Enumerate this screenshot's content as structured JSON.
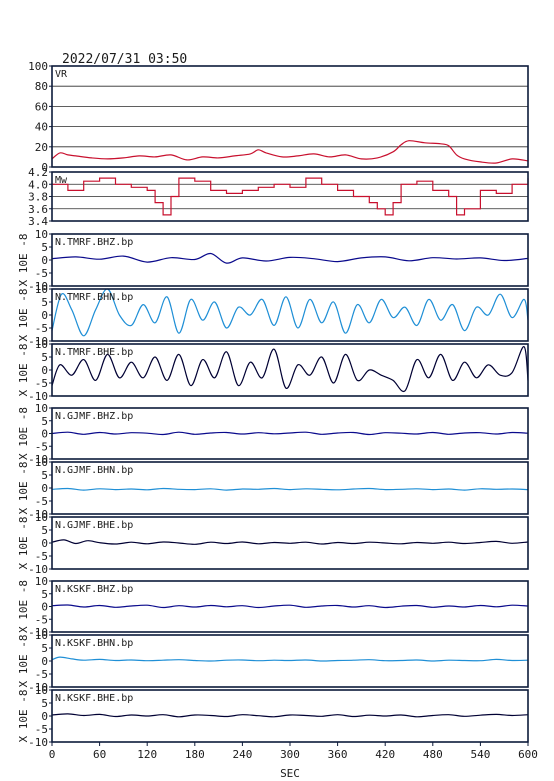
{
  "timestamp": "2022/07/31  03:50",
  "colors": {
    "frame": "#0c1a3a",
    "vr": "#c8102e",
    "mw": "#c8102e",
    "dark_blue": "#0a0a8c",
    "light_blue": "#1f8fd6",
    "black_trace": "#000033"
  },
  "x_axis": {
    "label": "SEC",
    "ticks": [
      0,
      60,
      120,
      180,
      240,
      300,
      360,
      420,
      480,
      540,
      600
    ],
    "range": [
      0,
      600
    ]
  },
  "wave_ylabel": "X 10E -8",
  "chart_data": [
    {
      "id": "vr",
      "type": "line",
      "label": "VR",
      "ylim": [
        0,
        100
      ],
      "yticks": [
        0,
        20,
        40,
        60,
        80,
        100
      ],
      "ytick_labels": [
        "0",
        "20",
        "40",
        "60",
        "80",
        "100"
      ],
      "grid": true,
      "color": "#c8102e",
      "x": [
        0,
        10,
        20,
        30,
        50,
        70,
        90,
        110,
        130,
        150,
        170,
        190,
        210,
        230,
        250,
        260,
        270,
        290,
        310,
        330,
        350,
        370,
        390,
        410,
        430,
        440,
        450,
        470,
        490,
        500,
        510,
        520,
        540,
        560,
        580,
        600
      ],
      "y": [
        8,
        14,
        12,
        11,
        9,
        8,
        9,
        11,
        10,
        12,
        7,
        10,
        9,
        11,
        13,
        17,
        14,
        10,
        11,
        13,
        10,
        12,
        8,
        9,
        15,
        22,
        26,
        24,
        23,
        21,
        12,
        8,
        5,
        4,
        8,
        6
      ]
    },
    {
      "id": "mw",
      "type": "step",
      "label": "Mw",
      "ylim": [
        3.4,
        4.2
      ],
      "yticks": [
        3.4,
        3.6,
        3.8,
        4.0,
        4.2
      ],
      "ytick_labels": [
        "3.4",
        "3.6",
        "3.8",
        "4.0",
        "4.2"
      ],
      "grid": true,
      "color": "#c8102e",
      "x": [
        0,
        20,
        40,
        60,
        80,
        100,
        120,
        130,
        140,
        150,
        160,
        180,
        200,
        220,
        240,
        260,
        280,
        300,
        320,
        340,
        360,
        380,
        400,
        410,
        420,
        430,
        440,
        460,
        480,
        500,
        510,
        520,
        540,
        560,
        580,
        600
      ],
      "y": [
        4.0,
        3.9,
        4.05,
        4.1,
        4.0,
        3.95,
        3.9,
        3.7,
        3.5,
        3.8,
        4.1,
        4.05,
        3.9,
        3.85,
        3.9,
        3.95,
        4.0,
        3.95,
        4.1,
        4.0,
        3.9,
        3.8,
        3.7,
        3.6,
        3.5,
        3.7,
        4.0,
        4.05,
        3.9,
        3.8,
        3.5,
        3.6,
        3.9,
        3.85,
        4.0,
        4.1
      ]
    },
    {
      "id": "w1",
      "type": "line",
      "label": "N.TMRF.BHZ.bp",
      "ylim": [
        -10,
        10
      ],
      "yticks": [
        -10,
        -5,
        0,
        5,
        10
      ],
      "ytick_labels": [
        "-10",
        "-5",
        "0",
        "5",
        "10"
      ],
      "color": "#0a0a8c",
      "x": [
        0,
        30,
        60,
        90,
        120,
        150,
        180,
        200,
        220,
        240,
        270,
        300,
        330,
        360,
        390,
        420,
        450,
        480,
        510,
        540,
        570,
        600
      ],
      "y": [
        0.5,
        1.2,
        0.3,
        1.5,
        -0.8,
        0.9,
        0.2,
        2.5,
        -1.2,
        0.8,
        -0.4,
        1.0,
        0.5,
        -0.6,
        0.8,
        1.2,
        -0.3,
        0.9,
        0.4,
        0.8,
        -0.2,
        0.6
      ]
    },
    {
      "id": "w2",
      "type": "line",
      "label": "N.TMRF.BHN.bp",
      "ylim": [
        -10,
        10
      ],
      "yticks": [
        -10,
        -5,
        0,
        5,
        10
      ],
      "ytick_labels": [
        "-10",
        "-5",
        "0",
        "5",
        "10"
      ],
      "color": "#1f8fd6",
      "x": [
        0,
        12,
        25,
        40,
        55,
        70,
        85,
        100,
        115,
        130,
        145,
        160,
        175,
        190,
        205,
        220,
        235,
        250,
        265,
        280,
        295,
        310,
        325,
        340,
        355,
        370,
        385,
        400,
        415,
        430,
        445,
        460,
        475,
        490,
        505,
        520,
        535,
        550,
        565,
        580,
        595,
        600
      ],
      "y": [
        -6,
        8,
        2,
        -8,
        2,
        10,
        0,
        -4,
        4,
        -3,
        7,
        -7,
        6,
        -2,
        5,
        -5,
        3,
        0,
        6,
        -4,
        7,
        -5,
        6,
        -3,
        5,
        -7,
        4,
        -3,
        6,
        -1,
        3,
        -4,
        6,
        -2,
        4,
        -6,
        3,
        0,
        8,
        -1,
        6,
        -2
      ]
    },
    {
      "id": "w3",
      "type": "line",
      "label": "N.TMRF.BHE.bp",
      "ylim": [
        -10,
        10
      ],
      "yticks": [
        -10,
        -5,
        0,
        5,
        10
      ],
      "ytick_labels": [
        "-10",
        "-5",
        "0",
        "5",
        "10"
      ],
      "color": "#000033",
      "x": [
        0,
        10,
        25,
        40,
        55,
        70,
        85,
        100,
        115,
        130,
        145,
        160,
        175,
        190,
        205,
        220,
        235,
        250,
        265,
        280,
        295,
        310,
        325,
        340,
        355,
        370,
        385,
        400,
        415,
        430,
        445,
        460,
        475,
        490,
        505,
        520,
        535,
        550,
        565,
        580,
        595,
        600
      ],
      "y": [
        -6,
        2,
        -2,
        4,
        -4,
        6,
        -3,
        3,
        -3,
        5,
        -4,
        6,
        -6,
        4,
        -3,
        7,
        -6,
        3,
        -3,
        8,
        -7,
        2,
        -2,
        5,
        -5,
        6,
        -4,
        0,
        -2,
        -4,
        -8,
        4,
        -3,
        6,
        -4,
        3,
        -3,
        2,
        -2,
        -1,
        9,
        -4
      ]
    },
    {
      "id": "w4",
      "type": "line",
      "label": "N.GJMF.BHZ.bp",
      "ylim": [
        -10,
        10
      ],
      "yticks": [
        -10,
        -5,
        0,
        5,
        10
      ],
      "ytick_labels": [
        "-10",
        "-5",
        "0",
        "5",
        "10"
      ],
      "color": "#0a0a8c",
      "x": [
        0,
        20,
        40,
        60,
        80,
        100,
        120,
        140,
        160,
        180,
        200,
        220,
        240,
        260,
        280,
        300,
        320,
        340,
        360,
        380,
        400,
        420,
        440,
        460,
        480,
        500,
        520,
        540,
        560,
        580,
        600
      ],
      "y": [
        0,
        0.5,
        -0.3,
        0.4,
        -0.2,
        0.3,
        0.1,
        -0.4,
        0.5,
        -0.3,
        0.2,
        0.4,
        -0.2,
        0.3,
        -0.1,
        0.2,
        0.5,
        -0.3,
        0.2,
        0.4,
        -0.4,
        0.3,
        0.1,
        -0.2,
        0.4,
        -0.3,
        0.2,
        0.3,
        -0.2,
        0.4,
        0.1
      ]
    },
    {
      "id": "w5",
      "type": "line",
      "label": "N.GJMF.BHN.bp",
      "ylim": [
        -10,
        10
      ],
      "yticks": [
        -10,
        -5,
        0,
        5,
        10
      ],
      "ytick_labels": [
        "-10",
        "-5",
        "0",
        "5",
        "10"
      ],
      "color": "#1f8fd6",
      "x": [
        0,
        20,
        40,
        60,
        80,
        100,
        120,
        140,
        160,
        180,
        200,
        220,
        240,
        260,
        280,
        300,
        320,
        340,
        360,
        380,
        400,
        420,
        440,
        460,
        480,
        500,
        520,
        540,
        560,
        580,
        600
      ],
      "y": [
        -0.5,
        -0.2,
        -0.8,
        -0.3,
        -0.6,
        -0.4,
        -0.7,
        -0.2,
        -0.5,
        -0.6,
        -0.3,
        -0.8,
        -0.4,
        -0.5,
        -0.2,
        -0.6,
        -0.3,
        -0.5,
        -0.7,
        -0.4,
        -0.2,
        -0.6,
        -0.5,
        -0.3,
        -0.6,
        -0.4,
        -0.8,
        -0.3,
        -0.5,
        -0.4,
        -0.6
      ]
    },
    {
      "id": "w6",
      "type": "line",
      "label": "N.GJMF.BHE.bp",
      "ylim": [
        -10,
        10
      ],
      "yticks": [
        -10,
        -5,
        0,
        5,
        10
      ],
      "ytick_labels": [
        "-10",
        "-5",
        "0",
        "5",
        "10"
      ],
      "color": "#000033",
      "x": [
        0,
        15,
        30,
        45,
        60,
        80,
        100,
        120,
        140,
        160,
        180,
        200,
        220,
        240,
        260,
        280,
        300,
        320,
        340,
        360,
        380,
        400,
        420,
        440,
        460,
        480,
        500,
        520,
        540,
        560,
        580,
        600
      ],
      "y": [
        0.3,
        1.2,
        -0.2,
        0.9,
        0.1,
        -0.4,
        0.3,
        -0.3,
        0.4,
        0.0,
        -0.5,
        0.3,
        -0.2,
        0.4,
        -0.3,
        0.2,
        -0.1,
        0.3,
        -0.4,
        0.2,
        -0.2,
        0.3,
        0.0,
        -0.3,
        0.2,
        -0.1,
        0.3,
        -0.2,
        0.2,
        0.6,
        -0.1,
        0.4
      ]
    },
    {
      "id": "w7",
      "type": "line",
      "label": "N.KSKF.BHZ.bp",
      "ylim": [
        -10,
        10
      ],
      "yticks": [
        -10,
        -5,
        0,
        5,
        10
      ],
      "ytick_labels": [
        "-10",
        "-5",
        "0",
        "5",
        "10"
      ],
      "color": "#0a0a8c",
      "x": [
        0,
        20,
        40,
        60,
        80,
        100,
        120,
        140,
        160,
        180,
        200,
        220,
        240,
        260,
        280,
        300,
        320,
        340,
        360,
        380,
        400,
        420,
        440,
        460,
        480,
        500,
        520,
        540,
        560,
        580,
        600
      ],
      "y": [
        0.3,
        0.6,
        -0.2,
        0.4,
        -0.3,
        0.2,
        0.5,
        -0.4,
        0.3,
        -0.2,
        0.4,
        -0.1,
        0.3,
        -0.4,
        0.2,
        0.5,
        -0.3,
        0.2,
        0.4,
        -0.2,
        0.3,
        -0.4,
        0.1,
        0.4,
        -0.3,
        0.2,
        -0.2,
        0.4,
        -0.1,
        0.5,
        0.2
      ]
    },
    {
      "id": "w8",
      "type": "line",
      "label": "N.KSKF.BHN.bp",
      "ylim": [
        -10,
        10
      ],
      "yticks": [
        -10,
        -5,
        0,
        5,
        10
      ],
      "ytick_labels": [
        "-10",
        "-5",
        "0",
        "5",
        "10"
      ],
      "color": "#1f8fd6",
      "x": [
        0,
        10,
        25,
        40,
        60,
        80,
        100,
        120,
        140,
        160,
        180,
        200,
        220,
        240,
        260,
        280,
        300,
        320,
        340,
        360,
        380,
        400,
        420,
        440,
        460,
        480,
        500,
        520,
        540,
        560,
        580,
        600
      ],
      "y": [
        0.5,
        1.5,
        0.8,
        0.3,
        0.6,
        0.2,
        0.4,
        0.1,
        0.3,
        0.5,
        0.2,
        0.0,
        0.3,
        0.4,
        0.1,
        0.3,
        0.2,
        0.4,
        0.0,
        0.2,
        0.3,
        0.5,
        0.1,
        0.2,
        0.4,
        0.0,
        0.3,
        0.2,
        0.1,
        0.6,
        0.2,
        0.3
      ]
    },
    {
      "id": "w9",
      "type": "line",
      "label": "N.KSKF.BHE.bp",
      "ylim": [
        -10,
        10
      ],
      "yticks": [
        -10,
        -5,
        0,
        5,
        10
      ],
      "ytick_labels": [
        "-10",
        "-5",
        "0",
        "5",
        "10"
      ],
      "color": "#000033",
      "x": [
        0,
        20,
        40,
        60,
        80,
        100,
        120,
        140,
        160,
        180,
        200,
        220,
        240,
        260,
        280,
        300,
        320,
        340,
        360,
        380,
        400,
        420,
        440,
        460,
        480,
        500,
        520,
        540,
        560,
        580,
        600
      ],
      "y": [
        0.4,
        0.8,
        0.2,
        0.6,
        -0.2,
        0.4,
        0.0,
        0.5,
        -0.3,
        0.4,
        0.2,
        -0.2,
        0.5,
        0.1,
        -0.3,
        0.4,
        0.2,
        -0.1,
        0.5,
        -0.2,
        0.3,
        0.0,
        0.4,
        -0.3,
        0.2,
        0.5,
        -0.1,
        0.3,
        0.6,
        0.2,
        0.5
      ]
    }
  ]
}
